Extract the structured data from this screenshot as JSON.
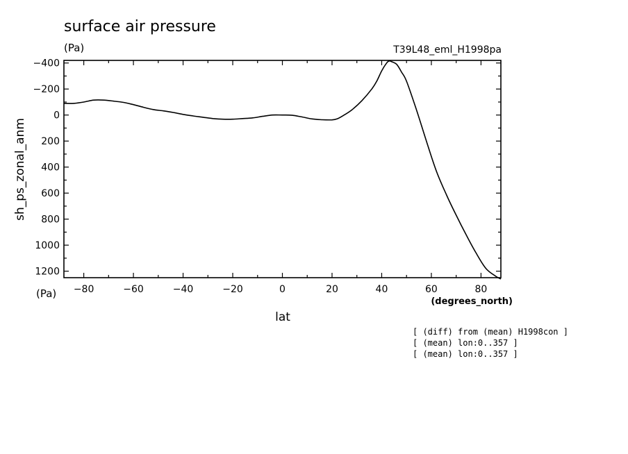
{
  "chart_data": {
    "type": "line",
    "title": "surface air pressure",
    "title_unit": "(Pa)",
    "run_label": "T39L48_eml_H1998pa",
    "xlabel": "lat",
    "xunit": "(degrees_north)",
    "ylabel": "sh_ps_zonal_anm",
    "yunit": "(Pa)",
    "xlim": [
      -88,
      88
    ],
    "ylim": [
      1250,
      -420
    ],
    "y_inverted": true,
    "grid": false,
    "xticks": [
      -80,
      -60,
      -40,
      -20,
      0,
      20,
      40,
      60,
      80
    ],
    "xtick_labels": [
      "−80",
      "−60",
      "−40",
      "−20",
      "0",
      "20",
      "40",
      "60",
      "80"
    ],
    "yticks": [
      -400,
      -200,
      0,
      200,
      400,
      600,
      800,
      1000,
      1200
    ],
    "ytick_labels": [
      "−400",
      "−200",
      "0",
      "200",
      "400",
      "600",
      "800",
      "1000",
      "1200"
    ],
    "series": [
      {
        "x": [
          -88,
          -84,
          -80,
          -76,
          -72,
          -68,
          -64,
          -60,
          -56,
          -52,
          -48,
          -44,
          -40,
          -36,
          -32,
          -28,
          -24,
          -20,
          -16,
          -12,
          -8,
          -4,
          0,
          4,
          8,
          12,
          16,
          20,
          22,
          24,
          28,
          32,
          36,
          38,
          40,
          42,
          43,
          44,
          46,
          48,
          50,
          54,
          58,
          62,
          66,
          70,
          74,
          78,
          82,
          86,
          88
        ],
        "y": [
          -90,
          -90,
          -100,
          -115,
          -115,
          -107,
          -97,
          -80,
          -60,
          -42,
          -32,
          -20,
          -5,
          7,
          17,
          27,
          32,
          32,
          27,
          22,
          10,
          0,
          0,
          2,
          15,
          30,
          36,
          37,
          30,
          10,
          -40,
          -110,
          -200,
          -260,
          -340,
          -400,
          -415,
          -410,
          -390,
          -330,
          -260,
          -40,
          200,
          430,
          610,
          770,
          920,
          1060,
          1180,
          1240,
          1260
        ]
      }
    ],
    "notes": [
      "[ (diff) from (mean) H1998con ]",
      "[ (mean) lon:0..357 ]",
      "[ (mean) lon:0..357 ]"
    ]
  }
}
